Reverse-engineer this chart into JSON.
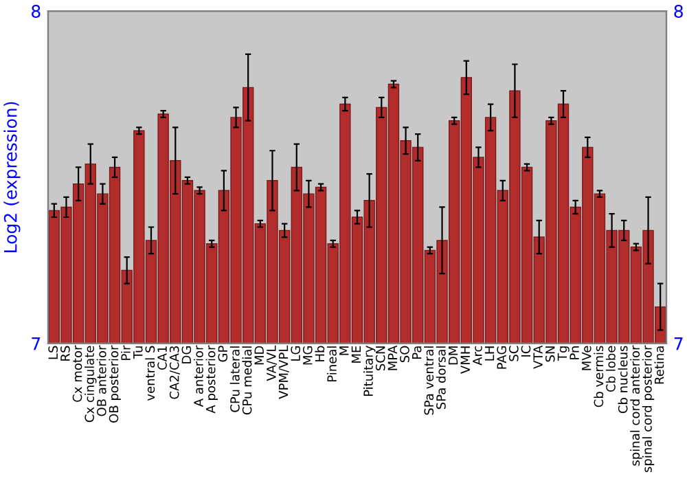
{
  "chart_data": {
    "type": "bar",
    "ylabel": "Log2 (expression)",
    "categories": [
      "LS",
      "RS",
      "Cx motor",
      "Cx cingulate",
      "OB anterior",
      "OB posterior",
      "Pir",
      "Tu",
      "ventral S",
      "CA1",
      "CA2/CA3",
      "DG",
      "A anterior",
      "A posterior",
      "GP",
      "CPu lateral",
      "CPu medial",
      "MD",
      "VA/VL",
      "VPM/VPL",
      "LG",
      "MG",
      "Hb",
      "Pineal",
      "M",
      "ME",
      "Pituitary",
      "SCN",
      "MPA",
      "SO",
      "Pa",
      "SPa ventral",
      "SPa dorsal",
      "DM",
      "VMH",
      "Arc",
      "LH",
      "PAG",
      "SC",
      "IC",
      "VTA",
      "SN",
      "Tg",
      "Pn",
      "MVe",
      "Cb vermis",
      "Cb lobe",
      "Cb nucleus",
      "spinal cord anterior",
      "spinal cord posterior",
      "Retina"
    ],
    "values": [
      7.4,
      7.41,
      7.48,
      7.54,
      7.45,
      7.53,
      7.22,
      7.64,
      7.31,
      7.69,
      7.55,
      7.49,
      7.46,
      7.3,
      7.46,
      7.68,
      7.77,
      7.36,
      7.49,
      7.34,
      7.53,
      7.45,
      7.47,
      7.3,
      7.72,
      7.38,
      7.43,
      7.71,
      7.78,
      7.61,
      7.59,
      7.28,
      7.31,
      7.67,
      7.8,
      7.56,
      7.68,
      7.46,
      7.76,
      7.53,
      7.32,
      7.67,
      7.72,
      7.41,
      7.59,
      7.45,
      7.34,
      7.34,
      7.29,
      7.34,
      7.11
    ],
    "errors": [
      0.02,
      0.03,
      0.05,
      0.06,
      0.03,
      0.03,
      0.04,
      0.01,
      0.04,
      0.01,
      0.1,
      0.01,
      0.01,
      0.01,
      0.06,
      0.03,
      0.1,
      0.01,
      0.09,
      0.02,
      0.07,
      0.04,
      0.01,
      0.01,
      0.02,
      0.02,
      0.08,
      0.03,
      0.01,
      0.04,
      0.04,
      0.01,
      0.1,
      0.01,
      0.05,
      0.03,
      0.04,
      0.03,
      0.08,
      0.01,
      0.05,
      0.01,
      0.04,
      0.02,
      0.03,
      0.01,
      0.05,
      0.03,
      0.01,
      0.1,
      0.07
    ],
    "color": "#b22c2c",
    "ylim": [
      7,
      8
    ],
    "yticks": [
      7,
      8
    ],
    "y2lim": [
      7,
      8
    ],
    "y2ticks": [
      7,
      8
    ],
    "grid": false
  }
}
